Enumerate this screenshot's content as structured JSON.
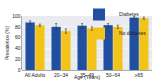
{
  "chart_data": {
    "type": "bar",
    "categories": [
      "All Adults",
      "20–34",
      "35–49",
      "50–64",
      "≥65"
    ],
    "series": [
      {
        "name": "Diabetes",
        "color": "#1f4f9e",
        "values": [
          88,
          80,
          82,
          83,
          97
        ],
        "errors": [
          3,
          6,
          4,
          3,
          2
        ]
      },
      {
        "name": "No diabetes",
        "color": "#f2c318",
        "values": [
          83,
          72,
          77,
          80,
          96
        ],
        "errors": [
          2,
          4,
          3,
          3,
          2
        ]
      }
    ],
    "x_label": "Age (Years)",
    "y_label": "Prevalence (%)",
    "ylim": [
      0,
      100
    ],
    "yticks": [
      0,
      20,
      40,
      60,
      80,
      100
    ],
    "grid": true,
    "legend": "top right"
  }
}
